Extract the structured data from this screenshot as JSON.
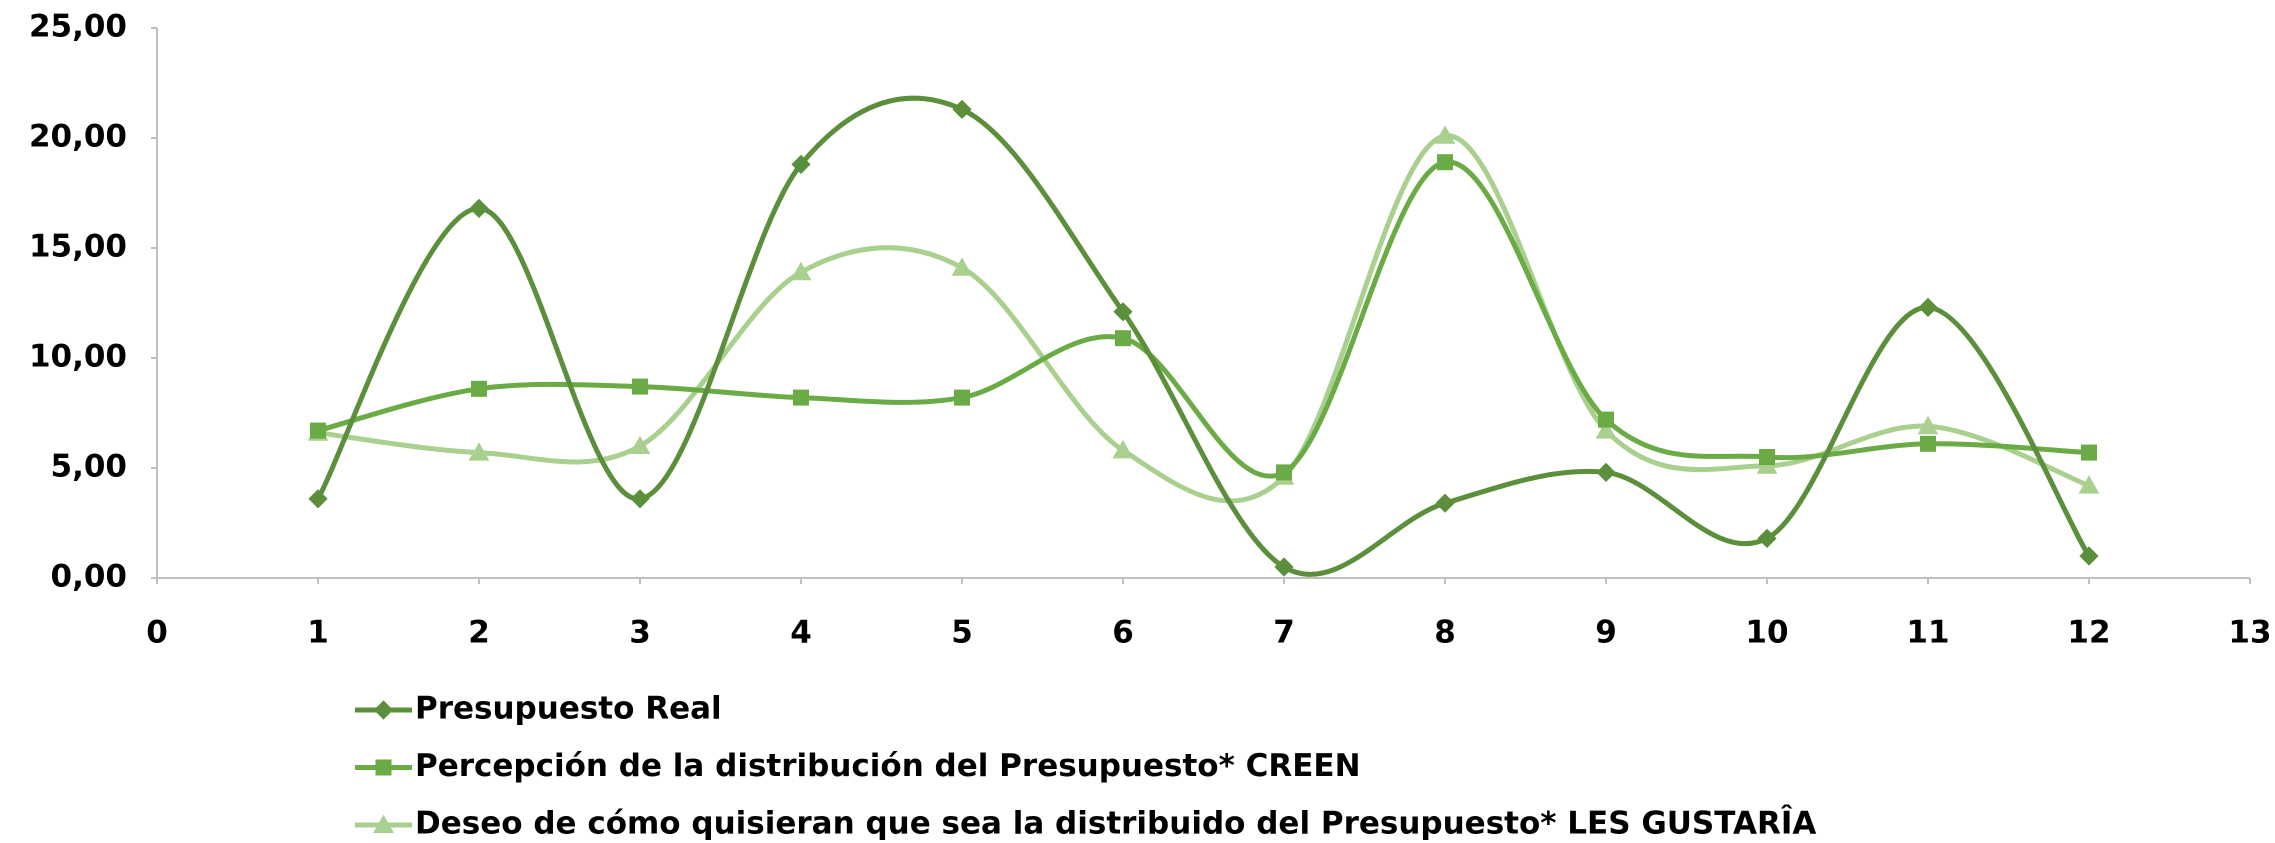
{
  "chart_data": {
    "type": "scatter",
    "x": [
      1,
      2,
      3,
      4,
      5,
      6,
      7,
      8,
      9,
      10,
      11,
      12
    ],
    "series": [
      {
        "name": "Presupuesto Real",
        "color": "#5b8f3b",
        "marker": "diamond",
        "values": [
          3.6,
          16.8,
          3.6,
          18.8,
          21.3,
          12.1,
          0.5,
          3.4,
          4.8,
          1.8,
          12.3,
          1.0
        ]
      },
      {
        "name": "Percepción de la distribución del Presupuesto* CREEN",
        "color": "#6aab45",
        "marker": "square",
        "values": [
          6.7,
          8.6,
          8.7,
          8.2,
          8.2,
          10.9,
          4.8,
          18.9,
          7.2,
          5.5,
          6.1,
          5.7
        ]
      },
      {
        "name": "Deseo de cómo quisieran que sea la distribuido del Presupuesto* LES GUSTARÎA",
        "color": "#a9d08e",
        "marker": "triangle",
        "values": [
          6.6,
          5.7,
          6.0,
          13.9,
          14.1,
          5.8,
          4.6,
          20.1,
          6.7,
          5.1,
          6.9,
          4.2
        ]
      }
    ],
    "smooth": true,
    "xlim": [
      0,
      13
    ],
    "xticks": [
      0,
      1,
      2,
      3,
      4,
      5,
      6,
      7,
      8,
      9,
      10,
      11,
      12,
      13
    ],
    "ylim": [
      0,
      25
    ],
    "yticks": [
      {
        "value": 0,
        "label": "0,00"
      },
      {
        "value": 5,
        "label": "5,00"
      },
      {
        "value": 10,
        "label": "10,00"
      },
      {
        "value": 15,
        "label": "15,00"
      },
      {
        "value": 20,
        "label": "20,00"
      },
      {
        "value": 25,
        "label": "25,00"
      }
    ]
  }
}
